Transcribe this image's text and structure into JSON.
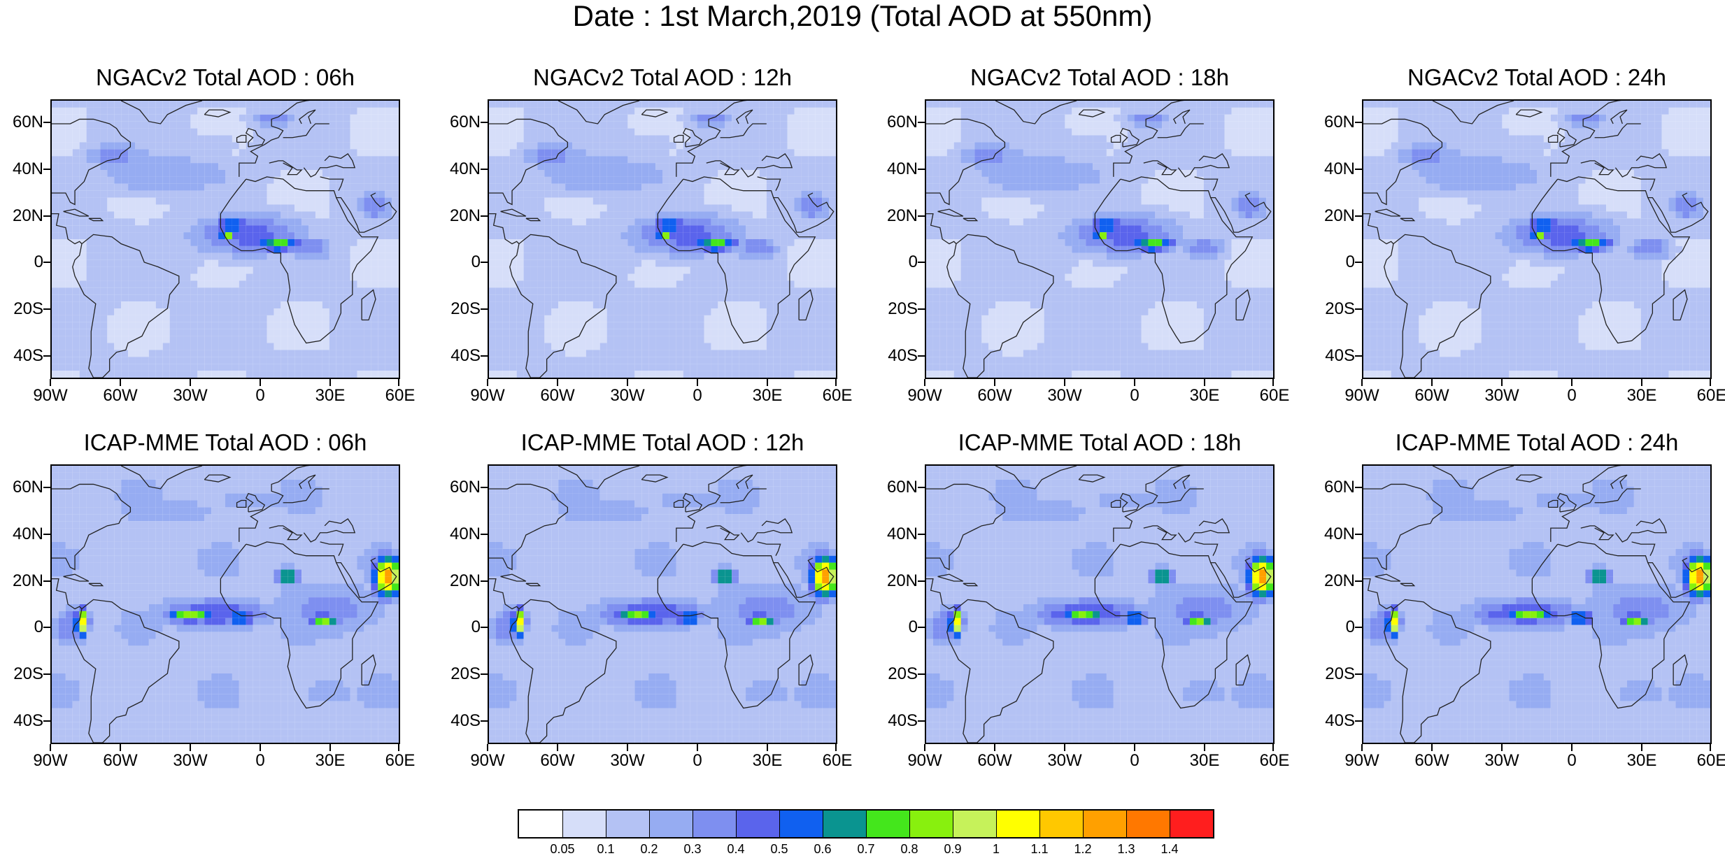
{
  "title": "Date : 1st March,2019 (Total AOD at 550nm)",
  "lat_labels": [
    "60N",
    "40N",
    "20N",
    "0",
    "20S",
    "40S"
  ],
  "lon_labels": [
    "90W",
    "60W",
    "30W",
    "0",
    "30E",
    "60E"
  ],
  "panels": [
    {
      "title": "NGACv2 Total AOD : 06h",
      "model": "NGACv2",
      "hour": "06h"
    },
    {
      "title": "NGACv2 Total AOD : 12h",
      "model": "NGACv2",
      "hour": "12h"
    },
    {
      "title": "NGACv2 Total AOD : 18h",
      "model": "NGACv2",
      "hour": "18h"
    },
    {
      "title": "NGACv2 Total AOD : 24h",
      "model": "NGACv2",
      "hour": "24h"
    },
    {
      "title": "ICAP-MME Total AOD : 06h",
      "model": "ICAP-MME",
      "hour": "06h"
    },
    {
      "title": "ICAP-MME Total AOD : 12h",
      "model": "ICAP-MME",
      "hour": "12h"
    },
    {
      "title": "ICAP-MME Total AOD : 18h",
      "model": "ICAP-MME",
      "hour": "18h"
    },
    {
      "title": "ICAP-MME Total AOD : 24h",
      "model": "ICAP-MME",
      "hour": "24h"
    }
  ],
  "colorbar": {
    "labels": [
      "0.05",
      "0.1",
      "0.2",
      "0.3",
      "0.4",
      "0.5",
      "0.6",
      "0.7",
      "0.8",
      "0.9",
      "1",
      "1.1",
      "1.2",
      "1.3",
      "1.4"
    ],
    "colors": [
      "#ffffff",
      "#d6def9",
      "#b4c2f4",
      "#96acf2",
      "#7e8ff0",
      "#5a64ec",
      "#1060f0",
      "#0a9490",
      "#44e61c",
      "#88f00e",
      "#c6f25a",
      "#ffff00",
      "#ffc800",
      "#ffa000",
      "#ff7800",
      "#ff1e1e"
    ]
  }
}
